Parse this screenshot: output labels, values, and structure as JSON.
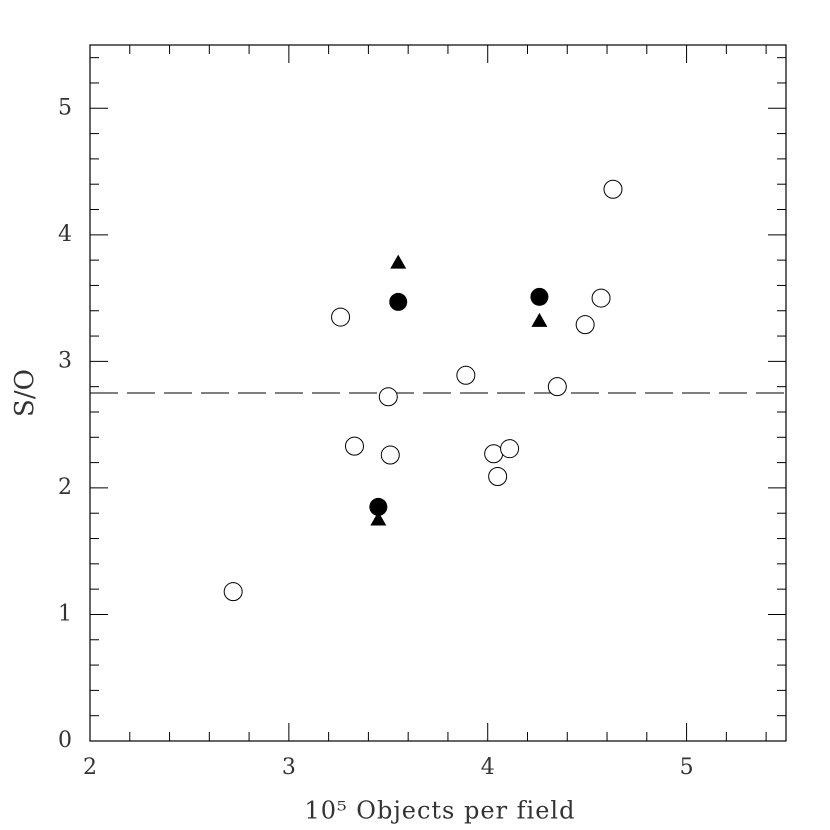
{
  "chart_data": {
    "type": "scatter",
    "x_label": "10⁵ Objects per field",
    "y_label": "S/O",
    "xlim": [
      2,
      5.5
    ],
    "ylim": [
      0,
      5.5
    ],
    "xticks": [
      2,
      3,
      4,
      5
    ],
    "yticks": [
      0,
      1,
      2,
      3,
      4,
      5
    ],
    "hline": 2.75,
    "hline_style": "dashed",
    "series": [
      {
        "marker": "open-circle",
        "color": "#000000",
        "x": [
          2.72,
          3.26,
          3.33,
          3.5,
          3.51,
          3.89,
          4.03,
          4.05,
          4.11,
          4.35,
          4.49,
          4.57,
          4.63
        ],
        "values": [
          1.18,
          3.35,
          2.33,
          2.72,
          2.26,
          2.89,
          2.27,
          2.09,
          2.31,
          2.8,
          3.29,
          3.5,
          4.36
        ]
      },
      {
        "marker": "filled-circle",
        "color": "#000000",
        "x": [
          3.55,
          4.26,
          3.45
        ],
        "values": [
          3.47,
          3.51,
          1.85
        ]
      },
      {
        "marker": "filled-triangle",
        "color": "#000000",
        "x": [
          3.55,
          4.26,
          3.45
        ],
        "values": [
          3.78,
          3.32,
          1.75
        ]
      }
    ]
  }
}
